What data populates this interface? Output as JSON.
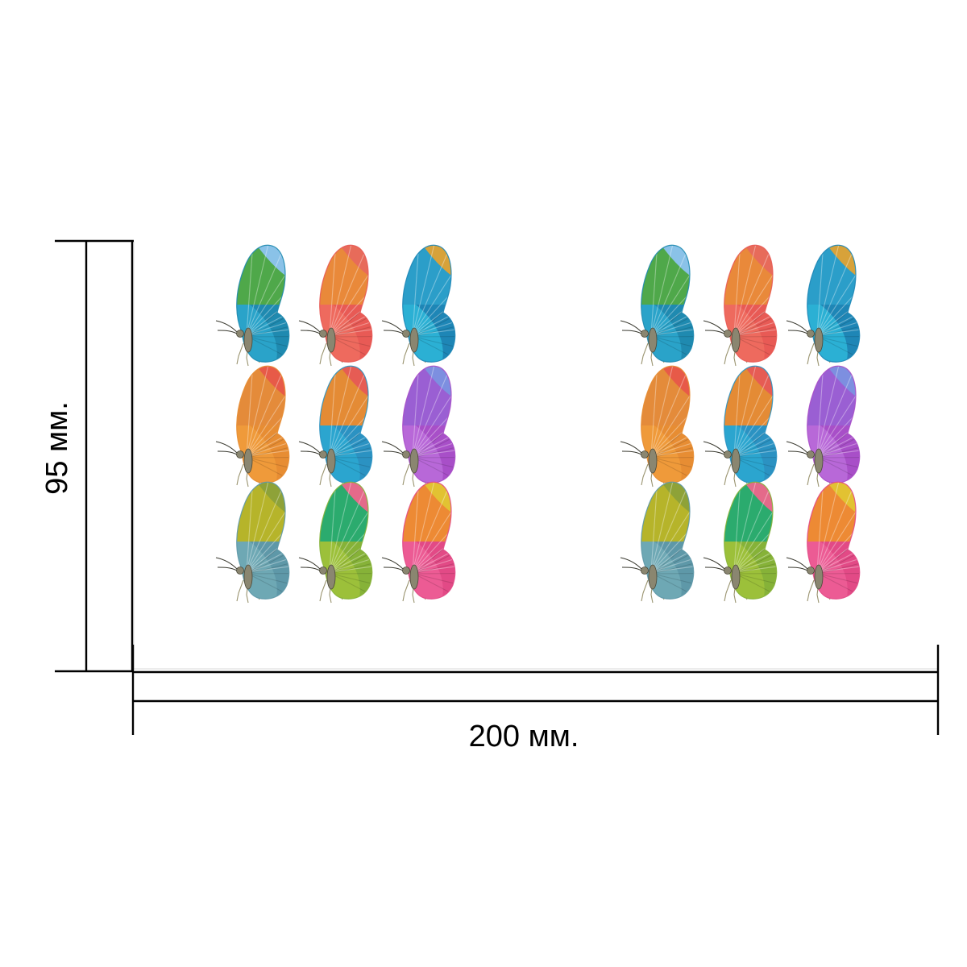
{
  "dimensions": {
    "height_label": "95 мм.",
    "width_label": "200 мм."
  },
  "sheets": [
    {
      "rows": [
        [
          {
            "icon": "butterfly-icon",
            "colors": [
              "#8ac2e8",
              "#4fa84a",
              "#2aa3c9",
              "#1f8ab0"
            ]
          },
          {
            "icon": "butterfly-icon",
            "colors": [
              "#e76b5a",
              "#e9893a",
              "#ee6a5e",
              "#e85a55"
            ]
          },
          {
            "icon": "butterfly-icon",
            "colors": [
              "#d7a23a",
              "#2b9ec9",
              "#2bb0d4",
              "#1e86b6"
            ]
          }
        ],
        [
          {
            "icon": "butterfly-icon",
            "colors": [
              "#e75a48",
              "#e48b3a",
              "#ef9a3a",
              "#e78d33"
            ]
          },
          {
            "icon": "butterfly-icon",
            "colors": [
              "#e65c54",
              "#e48b35",
              "#2ba5cf",
              "#2b92c2"
            ]
          },
          {
            "icon": "butterfly-icon",
            "colors": [
              "#7d8fe0",
              "#9a5fd3",
              "#b868d8",
              "#a84fc8"
            ]
          }
        ],
        [
          {
            "icon": "butterfly-icon",
            "colors": [
              "#8ea238",
              "#b6b42a",
              "#6ea8b4",
              "#5e98a8"
            ]
          },
          {
            "icon": "butterfly-icon",
            "colors": [
              "#e46a8a",
              "#2bab6e",
              "#9cc03a",
              "#86b238"
            ]
          },
          {
            "icon": "butterfly-icon",
            "colors": [
              "#e2c232",
              "#ed8a34",
              "#ec5b94",
              "#e24a86"
            ]
          }
        ]
      ]
    },
    {
      "rows": [
        [
          {
            "icon": "butterfly-icon",
            "colors": [
              "#8ac2e8",
              "#4fa84a",
              "#2aa3c9",
              "#1f8ab0"
            ]
          },
          {
            "icon": "butterfly-icon",
            "colors": [
              "#e76b5a",
              "#e9893a",
              "#ee6a5e",
              "#e85a55"
            ]
          },
          {
            "icon": "butterfly-icon",
            "colors": [
              "#d7a23a",
              "#2b9ec9",
              "#2bb0d4",
              "#1e86b6"
            ]
          }
        ],
        [
          {
            "icon": "butterfly-icon",
            "colors": [
              "#e75a48",
              "#e48b3a",
              "#ef9a3a",
              "#e78d33"
            ]
          },
          {
            "icon": "butterfly-icon",
            "colors": [
              "#e65c54",
              "#e48b35",
              "#2ba5cf",
              "#2b92c2"
            ]
          },
          {
            "icon": "butterfly-icon",
            "colors": [
              "#7d8fe0",
              "#9a5fd3",
              "#b868d8",
              "#a84fc8"
            ]
          }
        ],
        [
          {
            "icon": "butterfly-icon",
            "colors": [
              "#8ea238",
              "#b6b42a",
              "#6ea8b4",
              "#5e98a8"
            ]
          },
          {
            "icon": "butterfly-icon",
            "colors": [
              "#e46a8a",
              "#2bab6e",
              "#9cc03a",
              "#86b238"
            ]
          },
          {
            "icon": "butterfly-icon",
            "colors": [
              "#e2c232",
              "#ed8a34",
              "#ec5b94",
              "#e24a86"
            ]
          }
        ]
      ]
    }
  ]
}
